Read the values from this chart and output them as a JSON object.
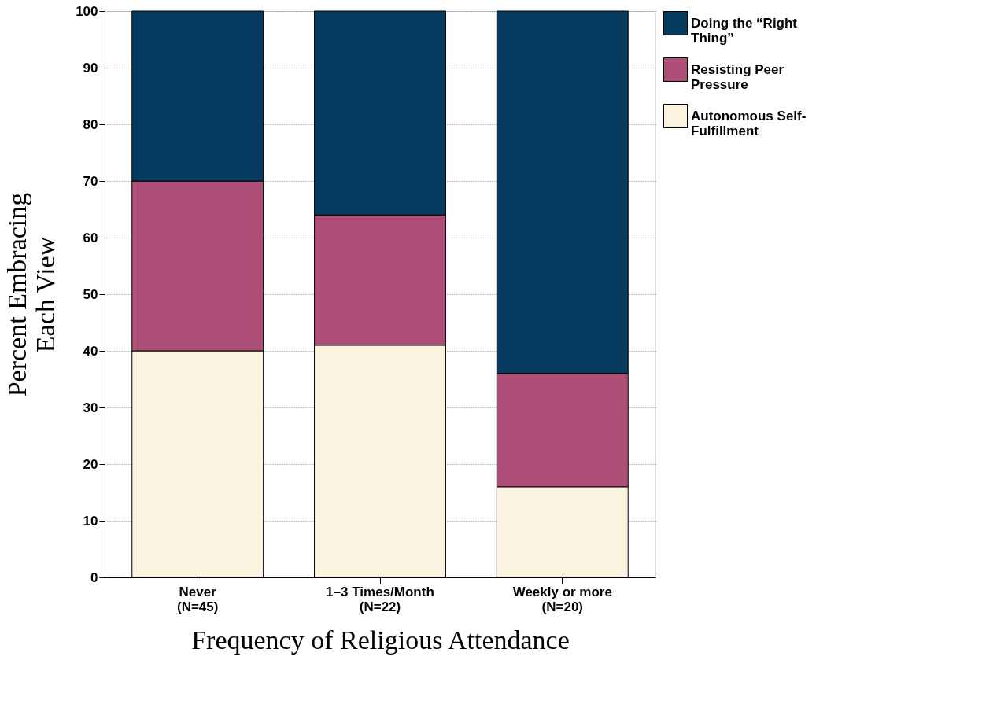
{
  "chart_data": {
    "type": "bar",
    "stacked": true,
    "xlabel": "Frequency of Religious Attendance",
    "ylabel": "Percent Embracing Each View",
    "categories": [
      "Never\n(N=45)",
      "1–3 Times/Month\n(N=22)",
      "Weekly or more\n(N=20)"
    ],
    "series": [
      {
        "name": "Autonomous Self-Fulfillment",
        "color": "#fbf3df",
        "values": [
          40,
          41,
          16
        ]
      },
      {
        "name": "Resisting Peer Pressure",
        "color": "#ad4f77",
        "values": [
          30,
          23,
          20
        ]
      },
      {
        "name": "Doing the “Right Thing”",
        "color": "#073a5f",
        "values": [
          30,
          36,
          64
        ]
      }
    ],
    "ylim": [
      0,
      100
    ],
    "yticks": [
      0,
      10,
      20,
      30,
      40,
      50,
      60,
      70,
      80,
      90,
      100
    ],
    "grid": "y",
    "legend": "right"
  }
}
